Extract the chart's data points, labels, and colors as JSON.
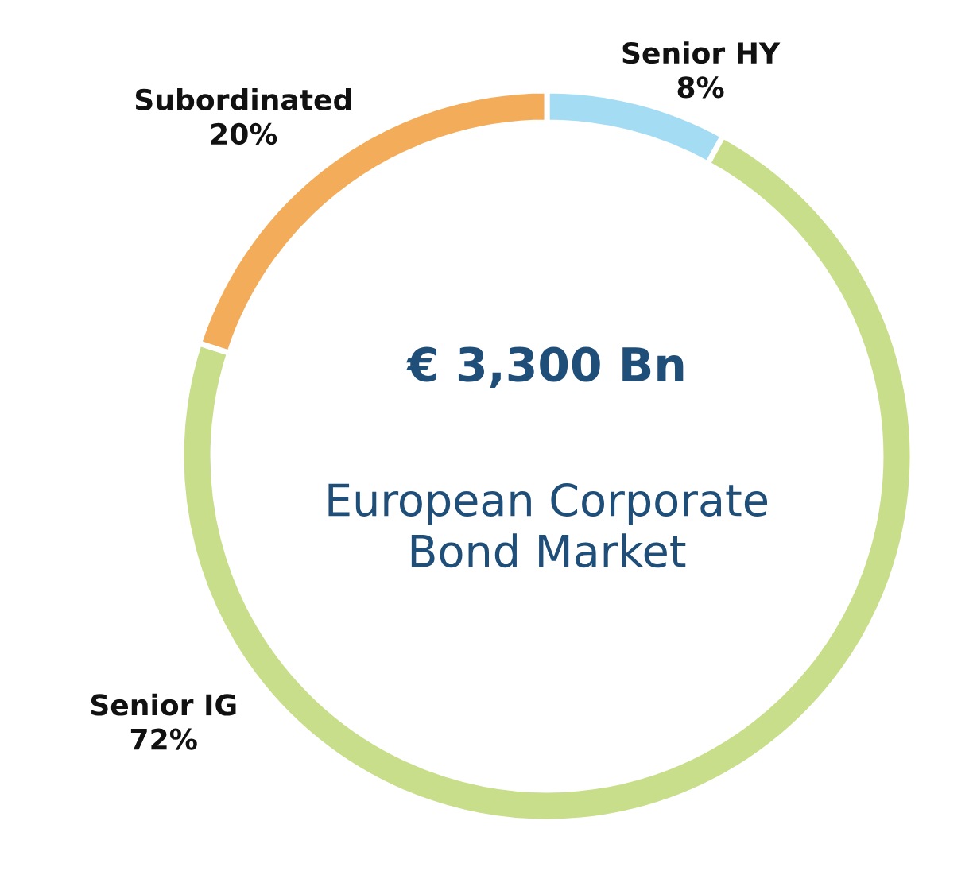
{
  "chart_data": {
    "type": "donut",
    "title": "€ 3,300 Bn",
    "subtitle": "European Corporate\nBond Market",
    "categories": [
      "Senior HY",
      "Senior IG",
      "Subordinated"
    ],
    "values": [
      8,
      72,
      20
    ],
    "value_labels": [
      "8%",
      "72%",
      "20%"
    ],
    "colors": [
      "#a3dcf3",
      "#c8de8a",
      "#f3ad5a"
    ]
  }
}
